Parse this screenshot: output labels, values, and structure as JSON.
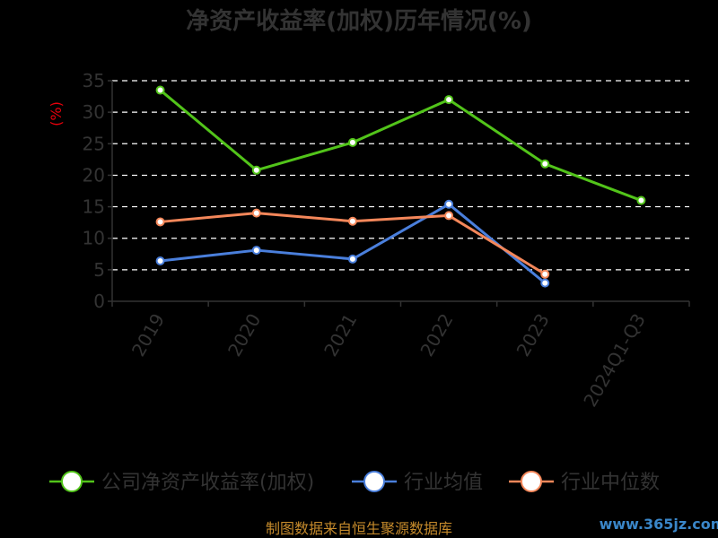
{
  "chart_data": {
    "type": "line",
    "title": "净资产收益率(加权)历年情况(%)",
    "ylabel": "(%)",
    "categories": [
      "2019",
      "2020",
      "2021",
      "2022",
      "2023",
      "2024Q1-Q3"
    ],
    "ylim": [
      0,
      35
    ],
    "yticks": [
      0,
      5,
      10,
      15,
      20,
      25,
      30,
      35
    ],
    "grid": true,
    "legend_position": "bottom",
    "series": [
      {
        "name": "公司净资产收益率(加权)",
        "color": "#52c41a",
        "values": [
          33.5,
          20.8,
          25.2,
          32.0,
          21.8,
          16.0
        ]
      },
      {
        "name": "行业均值",
        "color": "#4a7fdc",
        "values": [
          6.4,
          8.1,
          6.7,
          15.4,
          2.9,
          null
        ]
      },
      {
        "name": "行业中位数",
        "color": "#f4875a",
        "values": [
          12.6,
          14.0,
          12.7,
          13.6,
          4.3,
          null
        ]
      }
    ]
  },
  "footer": {
    "source": "制图数据来自恒生聚源数据库",
    "watermark": "www.365jz.com"
  }
}
